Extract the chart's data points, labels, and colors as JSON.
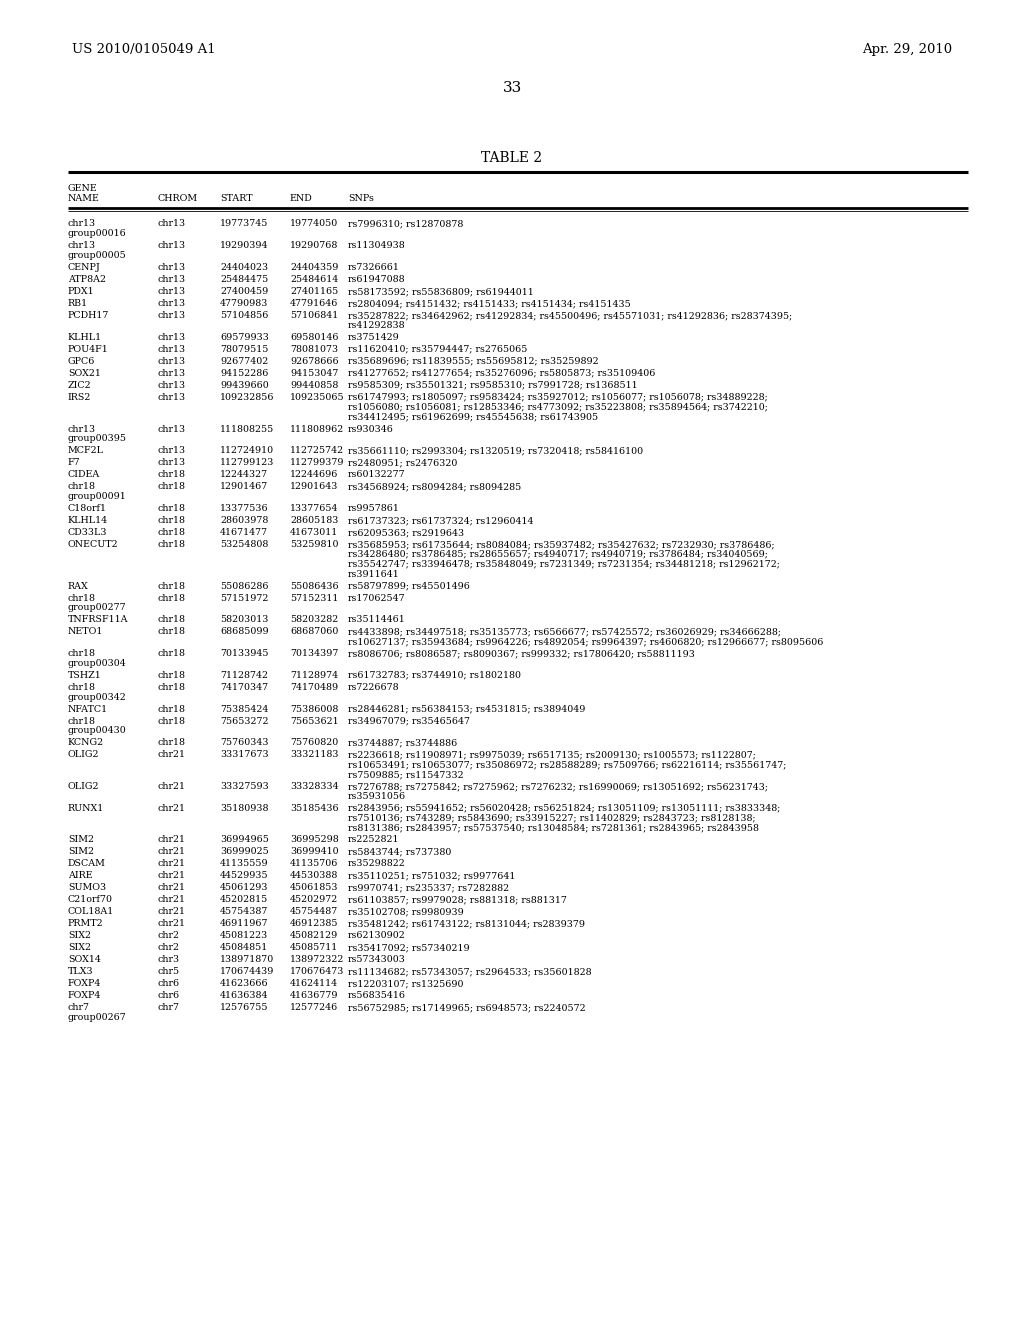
{
  "header_left": "US 2010/0105049 A1",
  "header_right": "Apr. 29, 2010",
  "page_number": "33",
  "table_title": "TABLE 2",
  "bg_color": "#ffffff",
  "text_color": "#000000",
  "font_size": 6.8,
  "rows": [
    [
      "chr13\ngroup00016",
      "chr13",
      "19773745",
      "19774050",
      "rs7996310; rs12870878"
    ],
    [
      "chr13\ngroup00005",
      "chr13",
      "19290394",
      "19290768",
      "rs11304938"
    ],
    [
      "CENPJ",
      "chr13",
      "24404023",
      "24404359",
      "rs7326661"
    ],
    [
      "ATP8A2",
      "chr13",
      "25484475",
      "25484614",
      "rs61947088"
    ],
    [
      "PDX1",
      "chr13",
      "27400459",
      "27401165",
      "rs58173592; rs55836809; rs61944011"
    ],
    [
      "RB1",
      "chr13",
      "47790983",
      "47791646",
      "rs2804094; rs4151432; rs4151433; rs4151434; rs4151435"
    ],
    [
      "PCDH17",
      "chr13",
      "57104856",
      "57106841",
      "rs35287822; rs34642962; rs41292834; rs45500496; rs45571031; rs41292836; rs28374395;\nrs41292838"
    ],
    [
      "KLHL1",
      "chr13",
      "69579933",
      "69580146",
      "rs3751429"
    ],
    [
      "POU4F1",
      "chr13",
      "78079515",
      "78081073",
      "rs11620410; rs35794447; rs2765065"
    ],
    [
      "GPC6",
      "chr13",
      "92677402",
      "92678666",
      "rs35689696; rs11839555; rs55695812; rs35259892"
    ],
    [
      "SOX21",
      "chr13",
      "94152286",
      "94153047",
      "rs41277652; rs41277654; rs35276096; rs5805873; rs35109406"
    ],
    [
      "ZIC2",
      "chr13",
      "99439660",
      "99440858",
      "rs9585309; rs35501321; rs9585310; rs7991728; rs1368511"
    ],
    [
      "IRS2",
      "chr13",
      "109232856",
      "109235065",
      "rs61747993; rs1805097; rs9583424; rs35927012; rs1056077; rs1056078; rs34889228;\nrs1056080; rs1056081; rs12853346; rs4773092; rs35223808; rs35894564; rs3742210;\nrs34412495; rs61962699; rs45545638; rs61743905"
    ],
    [
      "chr13\ngroup00395",
      "chr13",
      "111808255",
      "111808962",
      "rs930346"
    ],
    [
      "MCF2L",
      "chr13",
      "112724910",
      "112725742",
      "rs35661110; rs2993304; rs1320519; rs7320418; rs58416100"
    ],
    [
      "F7",
      "chr13",
      "112799123",
      "112799379",
      "rs2480951; rs2476320"
    ],
    [
      "CIDEA",
      "chr18",
      "12244327",
      "12244696",
      "rs60132277"
    ],
    [
      "chr18\ngroup00091",
      "chr18",
      "12901467",
      "12901643",
      "rs34568924; rs8094284; rs8094285"
    ],
    [
      "C18orf1",
      "chr18",
      "13377536",
      "13377654",
      "rs9957861"
    ],
    [
      "KLHL14",
      "chr18",
      "28603978",
      "28605183",
      "rs61737323; rs61737324; rs12960414"
    ],
    [
      "CD33L3",
      "chr18",
      "41671477",
      "41673011",
      "rs62095363; rs2919643"
    ],
    [
      "ONECUT2",
      "chr18",
      "53254808",
      "53259810",
      "rs35685953; rs61735644; rs8084084; rs35937482; rs35427632; rs7232930; rs3786486;\nrs34286480; rs3786485; rs28655657; rs4940717; rs4940719; rs3786484; rs34040569;\nrs35542747; rs33946478; rs35848049; rs7231349; rs7231354; rs34481218; rs12962172;\nrs3911641"
    ],
    [
      "RAX",
      "chr18",
      "55086286",
      "55086436",
      "rs58797899; rs45501496"
    ],
    [
      "chr18\ngroup00277",
      "chr18",
      "57151972",
      "57152311",
      "rs17062547"
    ],
    [
      "TNFRSF11A",
      "chr18",
      "58203013",
      "58203282",
      "rs35114461"
    ],
    [
      "NETO1",
      "chr18",
      "68685099",
      "68687060",
      "rs4433898; rs34497518; rs35135773; rs6566677; rs57425572; rs36026929; rs34666288;\nrs10627137; rs35943684; rs9964226; rs4892054; rs9964397; rs4606820; rs12966677; rs8095606"
    ],
    [
      "chr18\ngroup00304",
      "chr18",
      "70133945",
      "70134397",
      "rs8086706; rs8086587; rs8090367; rs999332; rs17806420; rs58811193"
    ],
    [
      "TSHZ1",
      "chr18",
      "71128742",
      "71128974",
      "rs61732783; rs3744910; rs1802180"
    ],
    [
      "chr18\ngroup00342",
      "chr18",
      "74170347",
      "74170489",
      "rs7226678"
    ],
    [
      "NFATC1",
      "chr18",
      "75385424",
      "75386008",
      "rs28446281; rs56384153; rs4531815; rs3894049"
    ],
    [
      "chr18\ngroup00430",
      "chr18",
      "75653272",
      "75653621",
      "rs34967079; rs35465647"
    ],
    [
      "KCNG2",
      "chr18",
      "75760343",
      "75760820",
      "rs3744887; rs3744886"
    ],
    [
      "OLIG2",
      "chr21",
      "33317673",
      "33321183",
      "rs2236618; rs11908971; rs9975039; rs6517135; rs2009130; rs1005573; rs1122807;\nrs10653491; rs10653077; rs35086972; rs28588289; rs7509766; rs62216114; rs35561747;\nrs7509885; rs11547332"
    ],
    [
      "OLIG2",
      "chr21",
      "33327593",
      "33328334",
      "rs7276788; rs7275842; rs7275962; rs7276232; rs16990069; rs13051692; rs56231743;\nrs35931056"
    ],
    [
      "RUNX1",
      "chr21",
      "35180938",
      "35185436",
      "rs2843956; rs55941652; rs56020428; rs56251824; rs13051109; rs13051111; rs3833348;\nrs7510136; rs743289; rs5843690; rs33915227; rs11402829; rs2843723; rs8128138;\nrs8131386; rs2843957; rs57537540; rs13048584; rs7281361; rs2843965; rs2843958"
    ],
    [
      "SIM2",
      "chr21",
      "36994965",
      "36995298",
      "rs2252821"
    ],
    [
      "SIM2",
      "chr21",
      "36999025",
      "36999410",
      "rs5843744; rs737380"
    ],
    [
      "DSCAM",
      "chr21",
      "41135559",
      "41135706",
      "rs35298822"
    ],
    [
      "AIRE",
      "chr21",
      "44529935",
      "44530388",
      "rs35110251; rs751032; rs9977641"
    ],
    [
      "SUMO3",
      "chr21",
      "45061293",
      "45061853",
      "rs9970741; rs235337; rs7282882"
    ],
    [
      "C21orf70",
      "chr21",
      "45202815",
      "45202972",
      "rs61103857; rs9979028; rs881318; rs881317"
    ],
    [
      "COL18A1",
      "chr21",
      "45754387",
      "45754487",
      "rs35102708; rs9980939"
    ],
    [
      "PRMT2",
      "chr21",
      "46911967",
      "46912385",
      "rs35481242; rs61743122; rs8131044; rs2839379"
    ],
    [
      "SIX2",
      "chr2",
      "45081223",
      "45082129",
      "rs62130902"
    ],
    [
      "SIX2",
      "chr2",
      "45084851",
      "45085711",
      "rs35417092; rs57340219"
    ],
    [
      "SOX14",
      "chr3",
      "138971870",
      "138972322",
      "rs57343003"
    ],
    [
      "TLX3",
      "chr5",
      "170674439",
      "170676473",
      "rs11134682; rs57343057; rs2964533; rs35601828"
    ],
    [
      "FOXP4",
      "chr6",
      "41623666",
      "41624114",
      "rs12203107; rs1325690"
    ],
    [
      "FOXP4",
      "chr6",
      "41636384",
      "41636779",
      "rs56835416"
    ],
    [
      "chr7\ngroup00267",
      "chr7",
      "12576755",
      "12577246",
      "rs56752985; rs17149965; rs6948573; rs2240572"
    ]
  ]
}
